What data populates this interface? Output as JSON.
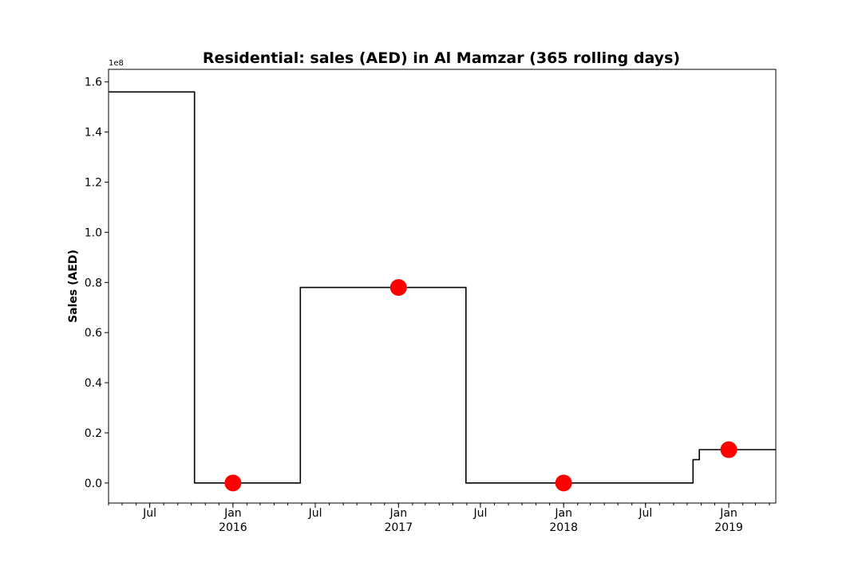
{
  "chart_data": {
    "type": "line",
    "title": "Residential: sales (AED) in Al Mamzar (365 rolling days)",
    "xlabel": "",
    "ylabel": "Sales (AED)",
    "y_offset_label": "1e8",
    "y_scale": 100000000,
    "xlim": [
      "2015-04-01",
      "2019-04-15"
    ],
    "ylim": [
      -0.08,
      1.65
    ],
    "y_ticks": [
      0.0,
      0.2,
      0.4,
      0.6,
      0.8,
      1.0,
      1.2,
      1.4,
      1.6
    ],
    "y_tick_labels": [
      "0.0",
      "0.2",
      "0.4",
      "0.6",
      "0.8",
      "1.0",
      "1.2",
      "1.4",
      "1.6"
    ],
    "x_major_ticks": [
      {
        "date": "2015-07-01",
        "label": "Jul",
        "sublabel": ""
      },
      {
        "date": "2016-01-01",
        "label": "Jan",
        "sublabel": "2016"
      },
      {
        "date": "2016-07-01",
        "label": "Jul",
        "sublabel": ""
      },
      {
        "date": "2017-01-01",
        "label": "Jan",
        "sublabel": "2017"
      },
      {
        "date": "2017-07-01",
        "label": "Jul",
        "sublabel": ""
      },
      {
        "date": "2018-01-01",
        "label": "Jan",
        "sublabel": "2018"
      },
      {
        "date": "2018-07-01",
        "label": "Jul",
        "sublabel": ""
      },
      {
        "date": "2019-01-01",
        "label": "Jan",
        "sublabel": "2019"
      }
    ],
    "grid": false,
    "series": [
      {
        "color": "#000000",
        "style": "step",
        "points": [
          {
            "x": "2015-04-01",
            "y": 1.56
          },
          {
            "x": "2015-10-08",
            "y": 1.56
          },
          {
            "x": "2015-10-08",
            "y": 0.0
          },
          {
            "x": "2016-05-29",
            "y": 0.0
          },
          {
            "x": "2016-05-29",
            "y": 0.78
          },
          {
            "x": "2017-05-30",
            "y": 0.78
          },
          {
            "x": "2017-05-30",
            "y": 0.0
          },
          {
            "x": "2018-10-14",
            "y": 0.0
          },
          {
            "x": "2018-10-14",
            "y": 0.093
          },
          {
            "x": "2018-10-28",
            "y": 0.093
          },
          {
            "x": "2018-10-28",
            "y": 0.133
          },
          {
            "x": "2019-04-15",
            "y": 0.133
          }
        ]
      },
      {
        "color": "#ff0000",
        "style": "markers",
        "points": [
          {
            "x": "2016-01-01",
            "y": 0.0
          },
          {
            "x": "2017-01-01",
            "y": 0.78
          },
          {
            "x": "2018-01-01",
            "y": 0.0
          },
          {
            "x": "2019-01-01",
            "y": 0.133
          }
        ]
      }
    ]
  }
}
